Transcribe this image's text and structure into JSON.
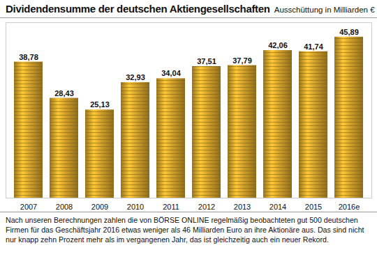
{
  "chart_data": {
    "type": "bar",
    "title": "Dividendensumme der deutschen Aktiengesellschaften",
    "subtitle": "Ausschüttung in Milliarden €",
    "categories": [
      "2007",
      "2008",
      "2009",
      "2010",
      "2011",
      "2012",
      "2013",
      "2014",
      "2015",
      "2016e"
    ],
    "values": [
      38.78,
      28.43,
      25.13,
      32.93,
      34.04,
      37.51,
      37.79,
      42.06,
      41.74,
      45.89
    ],
    "value_labels": [
      "38,78",
      "28,43",
      "25,13",
      "32,93",
      "34,04",
      "37,51",
      "37,79",
      "42,06",
      "41,74",
      "45,89"
    ],
    "data_labels": true,
    "color": "#d4a22a",
    "ylim": [
      0,
      50
    ],
    "tick_labels": "x",
    "grid": false,
    "caption": "Nach unseren Berechnungen zahlen die von BÖRSE ONLINE regelmäßig beobachteten gut 500 deutschen Firmen für das Geschäftsjahr 2016 etwas weniger als 46 Milliarden Euro an ihre Aktionäre aus. Das sind nicht nur knapp zehn Prozent mehr als im vergangenen Jahr, das ist gleichzeitig auch ein neuer Rekord."
  }
}
